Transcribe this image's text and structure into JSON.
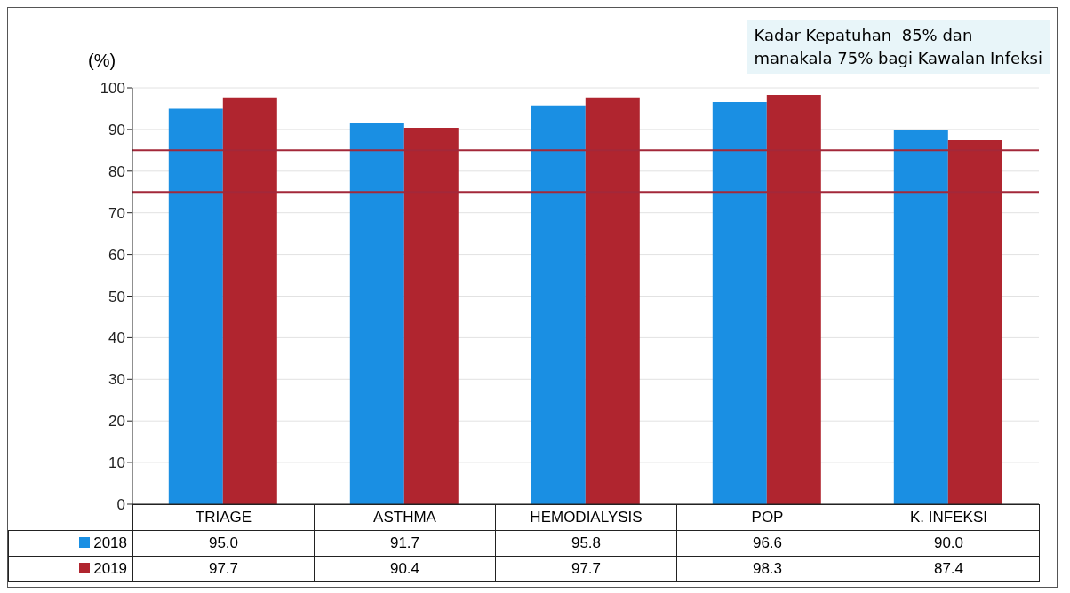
{
  "chart_data": {
    "type": "bar",
    "ylabel": "(%)",
    "categories": [
      "TRIAGE",
      "ASTHMA",
      "HEMODIALYSIS",
      "POP",
      "K. INFEKSI"
    ],
    "series": [
      {
        "name": "2018",
        "color": "#1a8fe3",
        "values": [
          95.0,
          91.7,
          95.8,
          96.6,
          90.0
        ],
        "value_labels": [
          "95.0",
          "91.7",
          "95.8",
          "96.6",
          "90.0"
        ]
      },
      {
        "name": "2019",
        "color": "#b0252f",
        "values": [
          97.7,
          90.4,
          97.7,
          98.3,
          87.4
        ],
        "value_labels": [
          "97.7",
          "90.4",
          "97.7",
          "98.3",
          "87.4"
        ]
      }
    ],
    "ylim": [
      0,
      100
    ],
    "yticks": [
      0,
      10,
      20,
      30,
      40,
      50,
      60,
      70,
      80,
      90,
      100
    ],
    "grid": "y",
    "legend": "bottom",
    "ref_lines": [
      {
        "axis": "y",
        "value": 85,
        "color": "#a3283a"
      },
      {
        "axis": "y",
        "value": 75,
        "color": "#a3283a"
      }
    ],
    "annotations": [
      "Kadar Kepatuhan  85% dan\nmanakala 75% bagi Kawalan Infeksi"
    ]
  }
}
